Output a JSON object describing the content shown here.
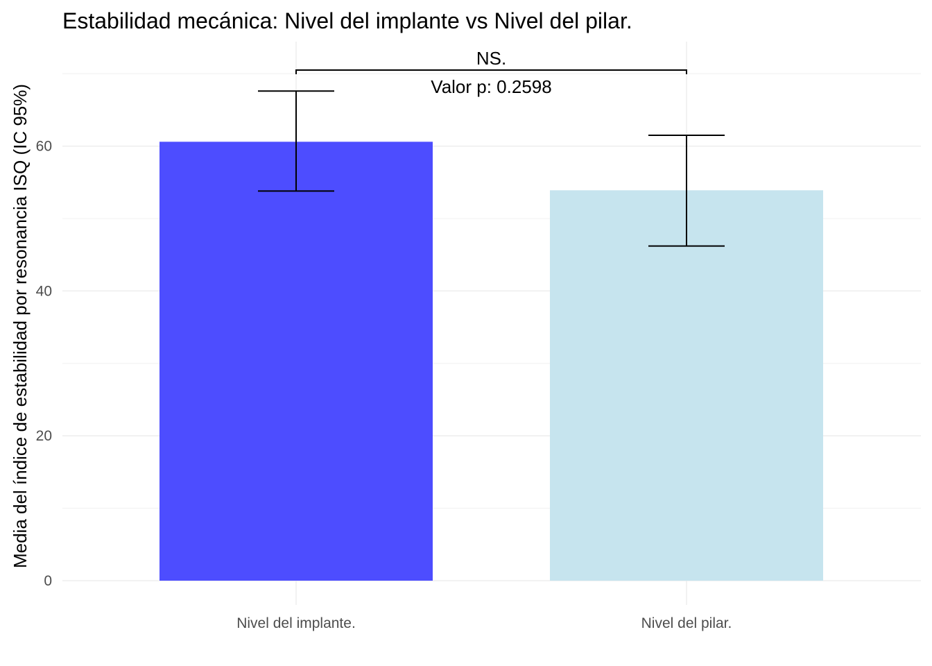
{
  "chart_data": {
    "type": "bar",
    "title": "Estabilidad mecánica: Nivel del implante vs Nivel del pilar.",
    "xlabel": "",
    "ylabel": "Media del índice de estabilidad por resonancia ISQ (IC 95%)",
    "categories": [
      "Nivel del implante.",
      "Nivel del pilar."
    ],
    "values": [
      60.6,
      53.9
    ],
    "ci_lower": [
      53.8,
      46.2
    ],
    "ci_upper": [
      67.6,
      61.5
    ],
    "colors": [
      "#4D4DFF",
      "#C6E4EE"
    ],
    "ylim": [
      0,
      70
    ],
    "yticks": [
      0,
      20,
      40,
      60
    ],
    "grid": true,
    "legend": "none",
    "comparison": {
      "label": "NS.",
      "pvalue_text": "Valor p: 0.2598",
      "bracket_y": 70.5
    }
  }
}
